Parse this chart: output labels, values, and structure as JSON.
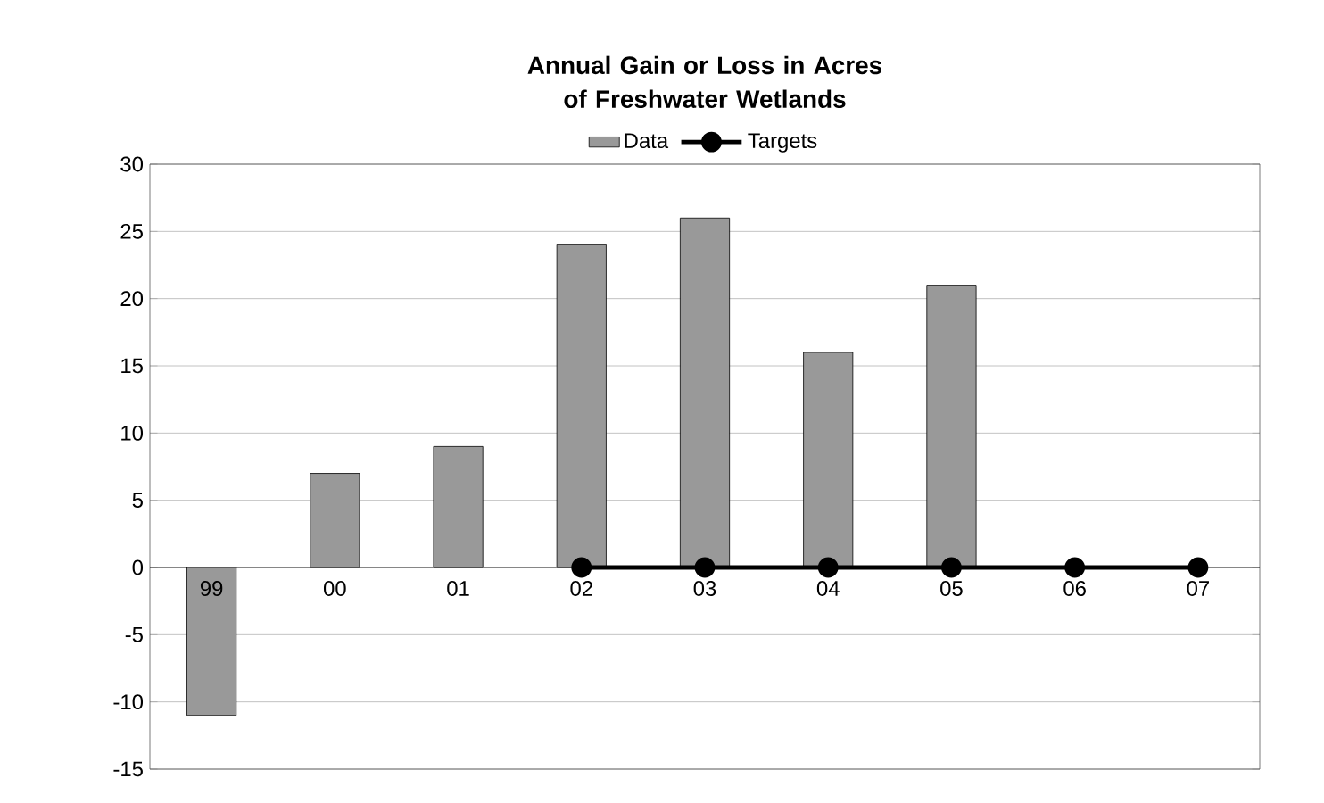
{
  "chart_data": {
    "type": "bar",
    "title": "Annual Gain or Loss in Acres of Freshwater Wetlands",
    "categories": [
      "99",
      "00",
      "01",
      "02",
      "03",
      "04",
      "05",
      "06",
      "07"
    ],
    "series": [
      {
        "name": "Data",
        "type": "bar",
        "color": "#999999",
        "values": [
          -11,
          7,
          9,
          24,
          26,
          16,
          21,
          null,
          null
        ]
      },
      {
        "name": "Targets",
        "type": "line",
        "color": "#000000",
        "marker": "circle",
        "values": [
          null,
          null,
          null,
          0,
          0,
          0,
          0,
          0,
          0
        ]
      }
    ],
    "ylim": [
      -15,
      30
    ],
    "yticks": [
      -15,
      -10,
      -5,
      0,
      5,
      10,
      15,
      20,
      25,
      30
    ],
    "grid": "y",
    "legend": "top"
  }
}
